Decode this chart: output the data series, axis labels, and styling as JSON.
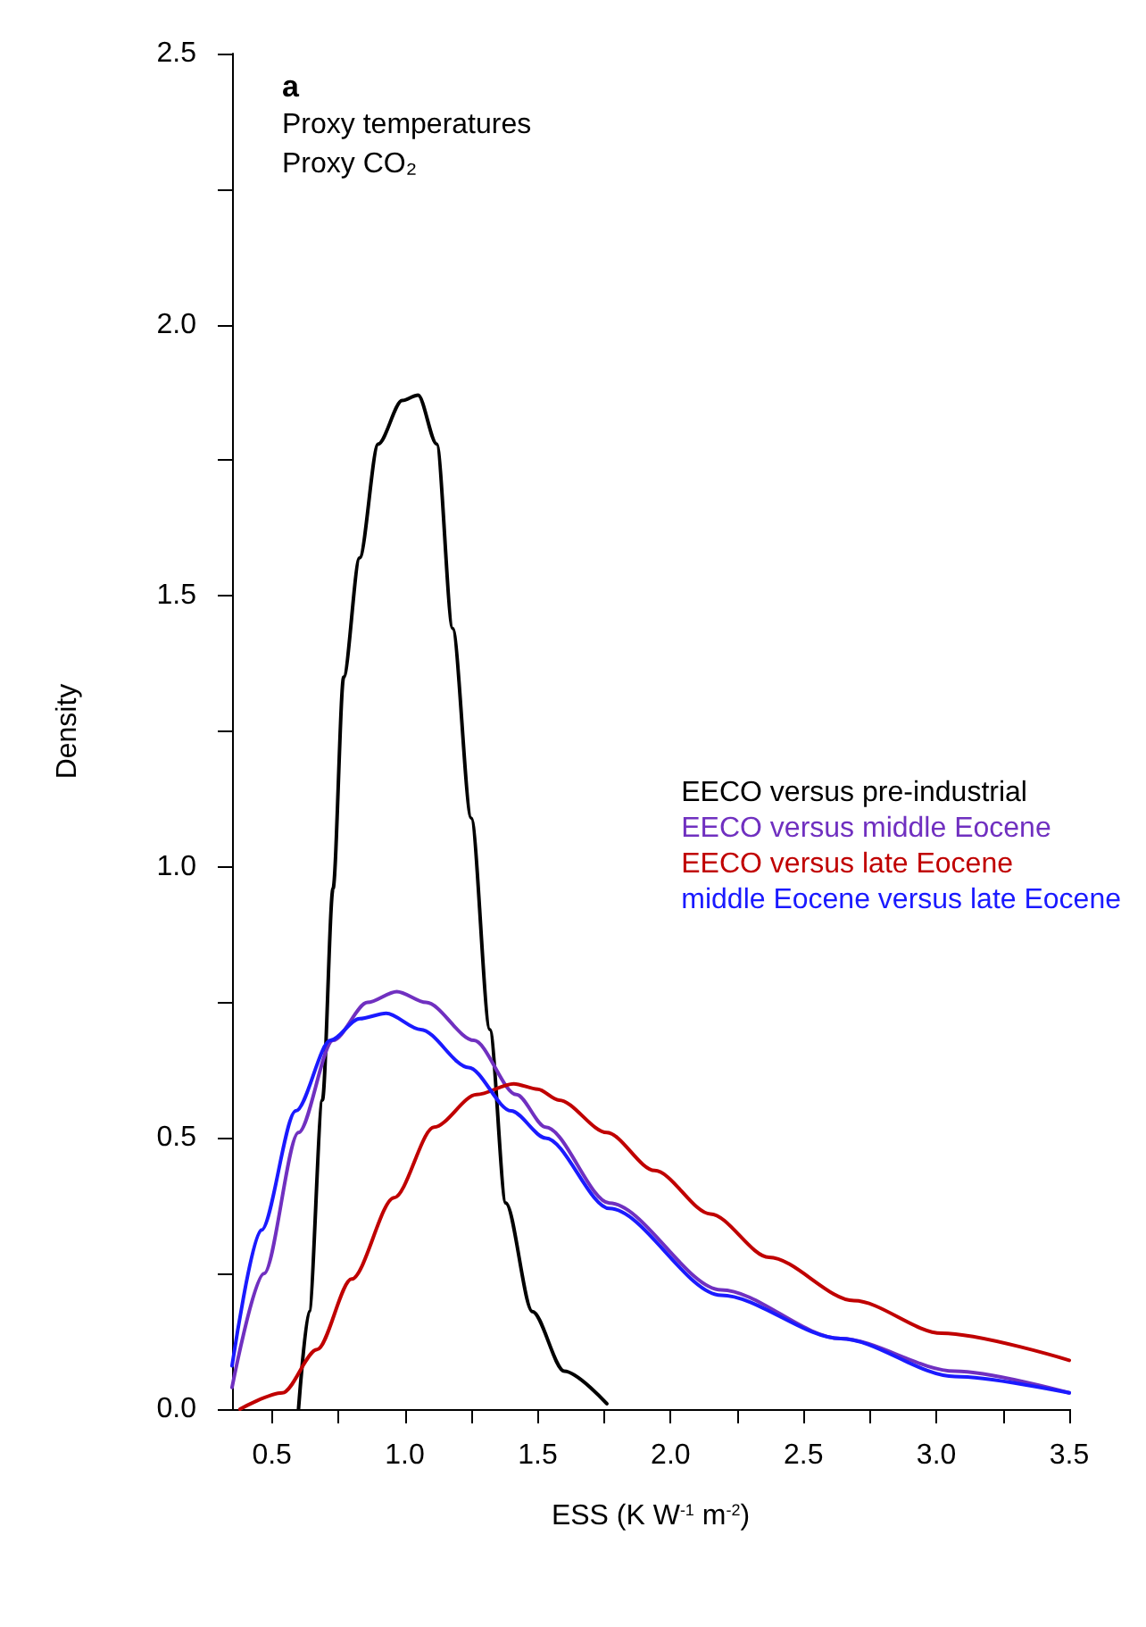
{
  "chart_data": {
    "type": "line",
    "xlabel": "ESS (K W$^{-1}$ m$^{-2}$)",
    "ylabel": "Density",
    "annotations": [
      "a",
      "Proxy temperatures",
      "Proxy CO₂"
    ],
    "xlim": [
      0.35,
      3.5
    ],
    "ylim": [
      0,
      2.5
    ],
    "xticks": [
      {
        "value": 0.5,
        "label": "0.5"
      },
      {
        "value": 0.75,
        "label": null
      },
      {
        "value": 1,
        "label": "1.0"
      },
      {
        "value": 1.25,
        "label": null
      },
      {
        "value": 1.5,
        "label": "1.5"
      },
      {
        "value": 1.75,
        "label": null
      },
      {
        "value": 2,
        "label": "2.0"
      },
      {
        "value": 2.25,
        "label": null
      },
      {
        "value": 2.5,
        "label": "2.5"
      },
      {
        "value": 2.75,
        "label": null
      },
      {
        "value": 3,
        "label": "3.0"
      },
      {
        "value": 3.25,
        "label": null
      },
      {
        "value": 3.5,
        "label": "3.5"
      }
    ],
    "yticks": [
      {
        "value": 0,
        "label": "0.0"
      },
      {
        "value": 0.25,
        "label": null
      },
      {
        "value": 0.5,
        "label": "0.5"
      },
      {
        "value": 0.75,
        "label": null
      },
      {
        "value": 1,
        "label": "1.0"
      },
      {
        "value": 1.25,
        "label": null
      },
      {
        "value": 1.5,
        "label": "1.5"
      },
      {
        "value": 1.75,
        "label": null
      },
      {
        "value": 2,
        "label": "2.0"
      },
      {
        "value": 2.25,
        "label": null
      },
      {
        "value": 2.5,
        "label": "2.5"
      }
    ],
    "grid": false,
    "legend": "right",
    "marker": "none",
    "line_style": "solid",
    "series": [
      {
        "name": "EECO versus pre-industrial",
        "color": "#000000",
        "x": [
          0.6,
          0.64,
          0.69,
          0.73,
          0.77,
          0.83,
          0.9,
          0.99,
          1.05,
          1.12,
          1.18,
          1.25,
          1.32,
          1.38,
          1.48,
          1.6,
          1.76
        ],
        "values": [
          0,
          0.18,
          0.57,
          0.96,
          1.35,
          1.57,
          1.78,
          1.86,
          1.87,
          1.78,
          1.44,
          1.09,
          0.7,
          0.38,
          0.18,
          0.07,
          0.01
        ]
      },
      {
        "name": "EECO versus middle Eocene",
        "color": "#7030c0",
        "x": [
          0.35,
          0.47,
          0.6,
          0.73,
          0.86,
          0.97,
          1.08,
          1.26,
          1.42,
          1.53,
          1.77,
          2.19,
          2.64,
          3.07,
          3.5
        ],
        "values": [
          0.04,
          0.25,
          0.51,
          0.68,
          0.75,
          0.77,
          0.75,
          0.68,
          0.58,
          0.52,
          0.38,
          0.22,
          0.13,
          0.07,
          0.03
        ]
      },
      {
        "name": "EECO versus late Eocene",
        "color": "#c00000",
        "x": [
          0.38,
          0.54,
          0.67,
          0.8,
          0.96,
          1.11,
          1.27,
          1.41,
          1.5,
          1.58,
          1.76,
          1.94,
          2.15,
          2.37,
          2.69,
          3.02,
          3.5
        ],
        "values": [
          0,
          0.03,
          0.11,
          0.24,
          0.39,
          0.52,
          0.58,
          0.6,
          0.59,
          0.57,
          0.51,
          0.44,
          0.36,
          0.28,
          0.2,
          0.14,
          0.09
        ]
      },
      {
        "name": "middle Eocene versus late Eocene",
        "color": "#1a1aff",
        "x": [
          0.35,
          0.46,
          0.59,
          0.72,
          0.83,
          0.93,
          1.06,
          1.24,
          1.4,
          1.53,
          1.77,
          2.19,
          2.64,
          3.07,
          3.5
        ],
        "values": [
          0.08,
          0.33,
          0.55,
          0.68,
          0.72,
          0.73,
          0.7,
          0.63,
          0.55,
          0.5,
          0.37,
          0.21,
          0.13,
          0.06,
          0.03
        ]
      }
    ]
  }
}
